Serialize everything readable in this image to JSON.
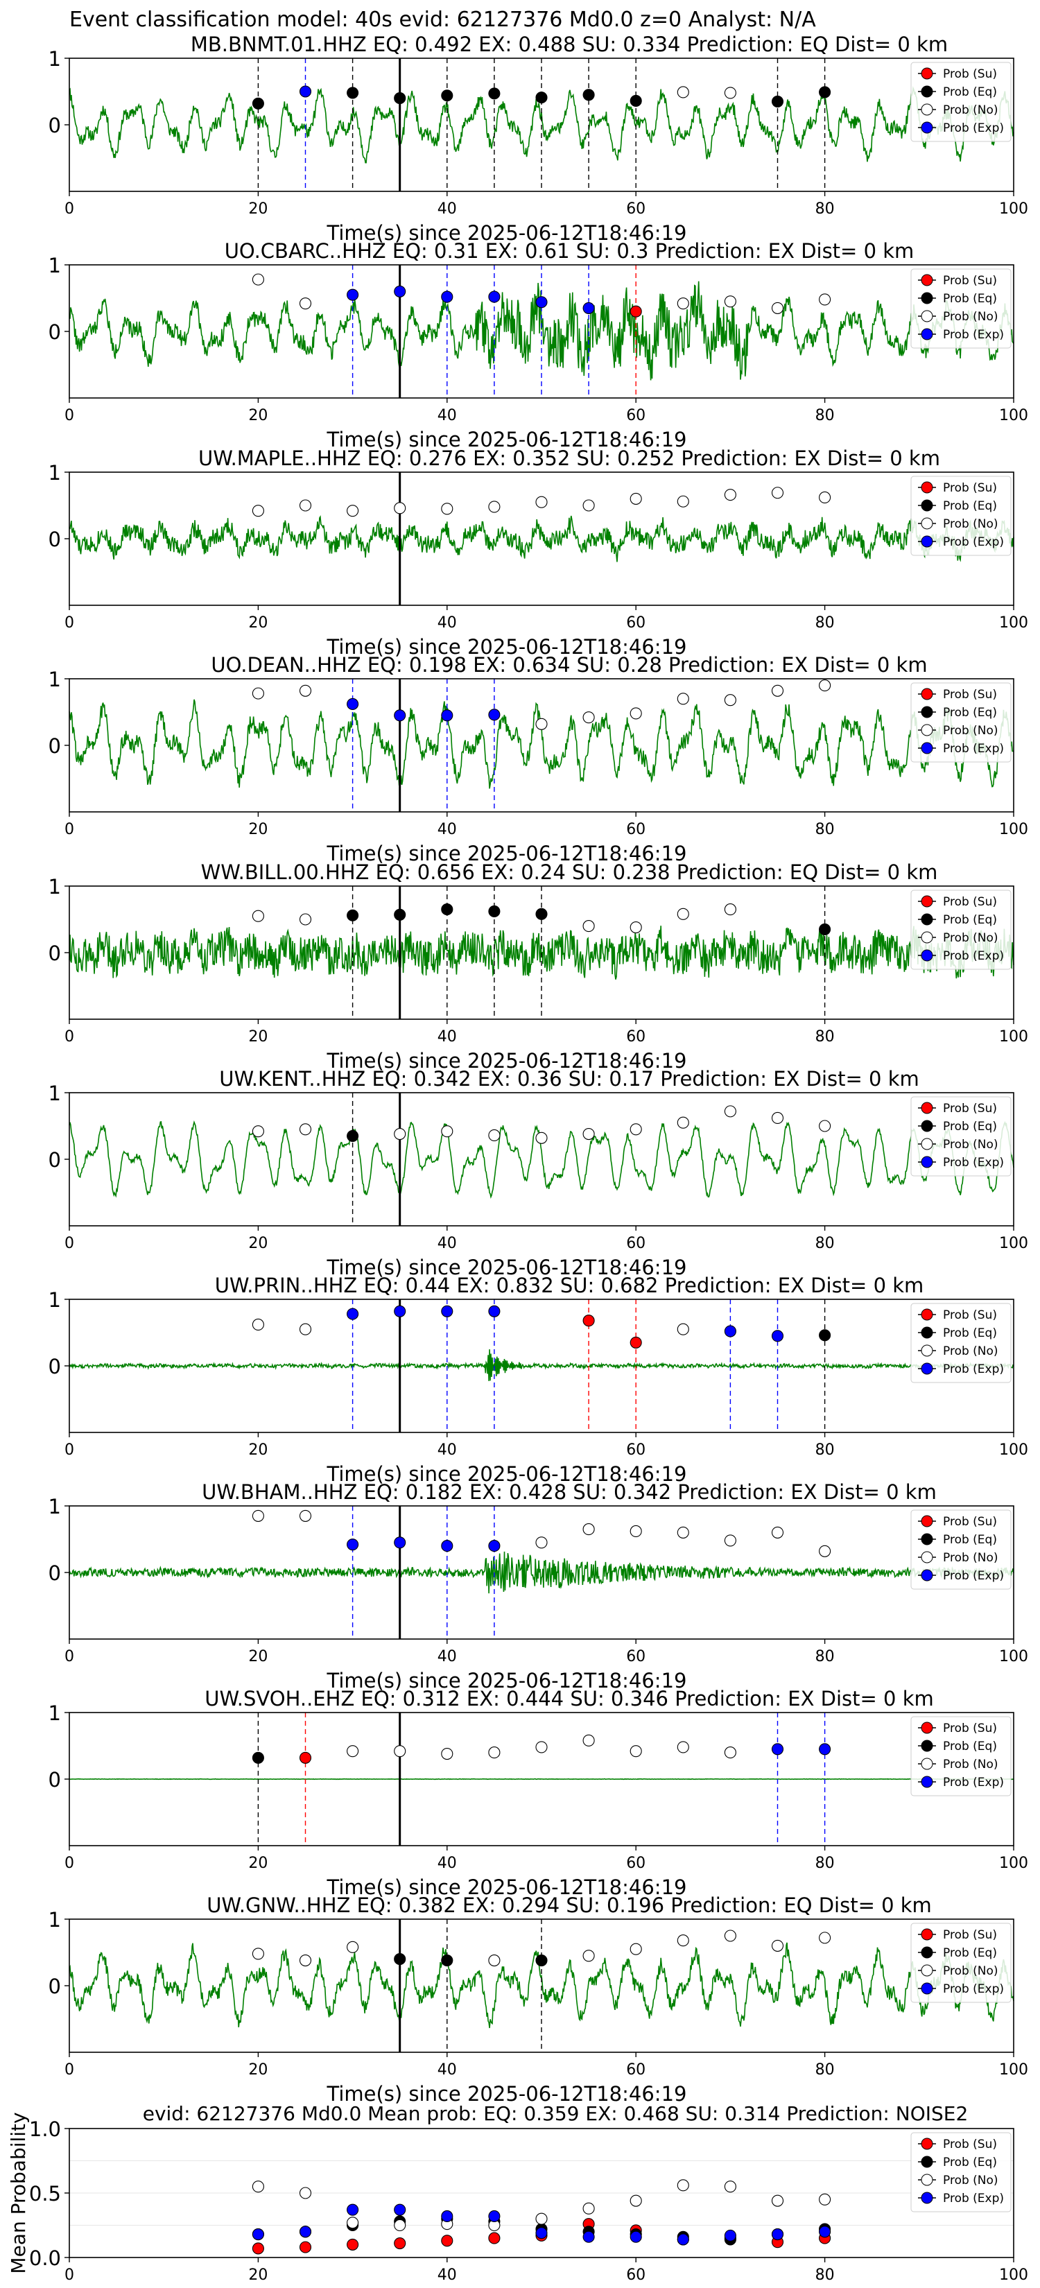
{
  "figure": {
    "suptitle": "Event classification model: 40s evid: 62127376 Md0.0 z=0 Analyst: N/A"
  },
  "colors": {
    "trace": "#008000",
    "su": "#ff0000",
    "eq": "#000000",
    "no": "#ffffff",
    "exp": "#0000ff",
    "grid": "#e6e6e6"
  },
  "legend_entries": [
    "Prob (Su)",
    "Prob (Eq)",
    "Prob (No)",
    "Prob (Exp)"
  ],
  "chart_data": [
    {
      "type": "line",
      "title": "MB.BNMT.01.HHZ   EQ: 0.492  EX: 0.488  SU: 0.334   Prediction: EQ    Dist= 0 km",
      "xlabel": "Time(s) since 2025-06-12T18:46:19",
      "xlim": [
        0,
        100
      ],
      "ylim": [
        -1,
        1
      ],
      "xticks": [
        0,
        20,
        40,
        60,
        80,
        100
      ],
      "yticks": [
        0,
        1
      ],
      "event_line": 35,
      "waveform": {
        "seed": 11,
        "style": "lowfreq",
        "amp": 0.55
      },
      "points": [
        {
          "x": 20,
          "y": 0.32,
          "c": "eq"
        },
        {
          "x": 25,
          "y": 0.5,
          "c": "exp"
        },
        {
          "x": 30,
          "y": 0.48,
          "c": "eq"
        },
        {
          "x": 35,
          "y": 0.4,
          "c": "eq"
        },
        {
          "x": 40,
          "y": 0.44,
          "c": "eq"
        },
        {
          "x": 45,
          "y": 0.47,
          "c": "eq"
        },
        {
          "x": 50,
          "y": 0.41,
          "c": "eq"
        },
        {
          "x": 55,
          "y": 0.45,
          "c": "eq"
        },
        {
          "x": 60,
          "y": 0.36,
          "c": "eq"
        },
        {
          "x": 65,
          "y": 0.49,
          "c": "no"
        },
        {
          "x": 70,
          "y": 0.48,
          "c": "no"
        },
        {
          "x": 75,
          "y": 0.35,
          "c": "eq"
        },
        {
          "x": 80,
          "y": 0.49,
          "c": "eq"
        }
      ]
    },
    {
      "type": "line",
      "title": "UO.CBARC..HHZ   EQ: 0.31  EX: 0.61  SU: 0.3   Prediction: EX    Dist= 0 km",
      "xlabel": "Time(s) since 2025-06-12T18:46:19",
      "xlim": [
        0,
        100
      ],
      "ylim": [
        -1,
        1
      ],
      "xticks": [
        0,
        20,
        40,
        60,
        80,
        100
      ],
      "yticks": [
        0,
        1
      ],
      "event_line": 35,
      "waveform": {
        "seed": 22,
        "style": "lowfreq_burst",
        "amp": 0.6
      },
      "points": [
        {
          "x": 20,
          "y": 0.78,
          "c": "no"
        },
        {
          "x": 25,
          "y": 0.42,
          "c": "no"
        },
        {
          "x": 30,
          "y": 0.55,
          "c": "exp"
        },
        {
          "x": 35,
          "y": 0.6,
          "c": "exp"
        },
        {
          "x": 40,
          "y": 0.52,
          "c": "exp"
        },
        {
          "x": 45,
          "y": 0.52,
          "c": "exp"
        },
        {
          "x": 50,
          "y": 0.44,
          "c": "exp"
        },
        {
          "x": 55,
          "y": 0.35,
          "c": "exp"
        },
        {
          "x": 60,
          "y": 0.3,
          "c": "su"
        },
        {
          "x": 65,
          "y": 0.42,
          "c": "no"
        },
        {
          "x": 70,
          "y": 0.45,
          "c": "no"
        },
        {
          "x": 75,
          "y": 0.35,
          "c": "no"
        },
        {
          "x": 80,
          "y": 0.48,
          "c": "no"
        }
      ]
    },
    {
      "type": "line",
      "title": "UW.MAPLE..HHZ   EQ: 0.276  EX: 0.352  SU: 0.252   Prediction: EX    Dist= 0 km",
      "xlabel": "Time(s) since 2025-06-12T18:46:19",
      "xlim": [
        0,
        100
      ],
      "ylim": [
        -1,
        1
      ],
      "xticks": [
        0,
        20,
        40,
        60,
        80,
        100
      ],
      "yticks": [
        0,
        1
      ],
      "event_line": 35,
      "waveform": {
        "seed": 33,
        "style": "mixed",
        "amp": 0.45
      },
      "points": [
        {
          "x": 20,
          "y": 0.42,
          "c": "no"
        },
        {
          "x": 25,
          "y": 0.5,
          "c": "no"
        },
        {
          "x": 30,
          "y": 0.42,
          "c": "no"
        },
        {
          "x": 35,
          "y": 0.46,
          "c": "no"
        },
        {
          "x": 40,
          "y": 0.45,
          "c": "no"
        },
        {
          "x": 45,
          "y": 0.48,
          "c": "no"
        },
        {
          "x": 50,
          "y": 0.55,
          "c": "no"
        },
        {
          "x": 55,
          "y": 0.5,
          "c": "no"
        },
        {
          "x": 60,
          "y": 0.6,
          "c": "no"
        },
        {
          "x": 65,
          "y": 0.56,
          "c": "no"
        },
        {
          "x": 70,
          "y": 0.66,
          "c": "no"
        },
        {
          "x": 75,
          "y": 0.69,
          "c": "no"
        },
        {
          "x": 80,
          "y": 0.62,
          "c": "no"
        }
      ]
    },
    {
      "type": "line",
      "title": "UO.DEAN..HHZ   EQ: 0.198  EX: 0.634  SU: 0.28   Prediction: EX    Dist= 0 km",
      "xlabel": "Time(s) since 2025-06-12T18:46:19",
      "xlim": [
        0,
        100
      ],
      "ylim": [
        -1,
        1
      ],
      "xticks": [
        0,
        20,
        40,
        60,
        80,
        100
      ],
      "yticks": [
        0,
        1
      ],
      "event_line": 35,
      "waveform": {
        "seed": 44,
        "style": "lowfreq",
        "amp": 0.7
      },
      "points": [
        {
          "x": 20,
          "y": 0.78,
          "c": "no"
        },
        {
          "x": 25,
          "y": 0.82,
          "c": "no"
        },
        {
          "x": 30,
          "y": 0.62,
          "c": "exp"
        },
        {
          "x": 35,
          "y": 0.45,
          "c": "exp"
        },
        {
          "x": 40,
          "y": 0.45,
          "c": "exp"
        },
        {
          "x": 45,
          "y": 0.46,
          "c": "exp"
        },
        {
          "x": 50,
          "y": 0.32,
          "c": "no"
        },
        {
          "x": 55,
          "y": 0.42,
          "c": "no"
        },
        {
          "x": 60,
          "y": 0.48,
          "c": "no"
        },
        {
          "x": 65,
          "y": 0.7,
          "c": "no"
        },
        {
          "x": 70,
          "y": 0.68,
          "c": "no"
        },
        {
          "x": 75,
          "y": 0.82,
          "c": "no"
        },
        {
          "x": 80,
          "y": 0.9,
          "c": "no"
        }
      ]
    },
    {
      "type": "line",
      "title": "WW.BILL.00.HHZ   EQ: 0.656  EX: 0.24  SU: 0.238   Prediction: EQ    Dist= 0 km",
      "xlabel": "Time(s) since 2025-06-12T18:46:19",
      "xlim": [
        0,
        100
      ],
      "ylim": [
        -1,
        1
      ],
      "xticks": [
        0,
        20,
        40,
        60,
        80,
        100
      ],
      "yticks": [
        0,
        1
      ],
      "event_line": 35,
      "waveform": {
        "seed": 55,
        "style": "noisy",
        "amp": 0.5
      },
      "points": [
        {
          "x": 20,
          "y": 0.55,
          "c": "no"
        },
        {
          "x": 25,
          "y": 0.5,
          "c": "no"
        },
        {
          "x": 30,
          "y": 0.56,
          "c": "eq"
        },
        {
          "x": 35,
          "y": 0.57,
          "c": "eq"
        },
        {
          "x": 40,
          "y": 0.65,
          "c": "eq"
        },
        {
          "x": 45,
          "y": 0.62,
          "c": "eq"
        },
        {
          "x": 50,
          "y": 0.58,
          "c": "eq"
        },
        {
          "x": 55,
          "y": 0.4,
          "c": "no"
        },
        {
          "x": 60,
          "y": 0.38,
          "c": "no"
        },
        {
          "x": 65,
          "y": 0.58,
          "c": "no"
        },
        {
          "x": 70,
          "y": 0.65,
          "c": "no"
        },
        {
          "x": 80,
          "y": 0.35,
          "c": "eq"
        }
      ]
    },
    {
      "type": "line",
      "title": "UW.KENT..HHZ   EQ: 0.342  EX: 0.36  SU: 0.17   Prediction: EX    Dist= 0 km",
      "xlabel": "Time(s) since 2025-06-12T18:46:19",
      "xlim": [
        0,
        100
      ],
      "ylim": [
        -1,
        1
      ],
      "xticks": [
        0,
        20,
        40,
        60,
        80,
        100
      ],
      "yticks": [
        0,
        1
      ],
      "event_line": 35,
      "waveform": {
        "seed": 66,
        "style": "lowfreq_big",
        "amp": 0.6
      },
      "points": [
        {
          "x": 20,
          "y": 0.42,
          "c": "no"
        },
        {
          "x": 25,
          "y": 0.45,
          "c": "no"
        },
        {
          "x": 30,
          "y": 0.35,
          "c": "eq"
        },
        {
          "x": 35,
          "y": 0.38,
          "c": "no"
        },
        {
          "x": 40,
          "y": 0.42,
          "c": "no"
        },
        {
          "x": 45,
          "y": 0.36,
          "c": "no"
        },
        {
          "x": 50,
          "y": 0.32,
          "c": "no"
        },
        {
          "x": 55,
          "y": 0.38,
          "c": "no"
        },
        {
          "x": 60,
          "y": 0.45,
          "c": "no"
        },
        {
          "x": 65,
          "y": 0.55,
          "c": "no"
        },
        {
          "x": 70,
          "y": 0.72,
          "c": "no"
        },
        {
          "x": 75,
          "y": 0.62,
          "c": "no"
        },
        {
          "x": 80,
          "y": 0.5,
          "c": "no"
        }
      ]
    },
    {
      "type": "line",
      "title": "UW.PRIN..HHZ   EQ: 0.44  EX: 0.832  SU: 0.682   Prediction: EX    Dist= 0 km",
      "xlabel": "Time(s) since 2025-06-12T18:46:19",
      "xlim": [
        0,
        100
      ],
      "ylim": [
        -1,
        1
      ],
      "xticks": [
        0,
        20,
        40,
        60,
        80,
        100
      ],
      "yticks": [
        0,
        1
      ],
      "event_line": 35,
      "waveform": {
        "seed": 77,
        "style": "quiet_burst",
        "amp": 0.15
      },
      "points": [
        {
          "x": 20,
          "y": 0.62,
          "c": "no"
        },
        {
          "x": 25,
          "y": 0.55,
          "c": "no"
        },
        {
          "x": 30,
          "y": 0.78,
          "c": "exp"
        },
        {
          "x": 35,
          "y": 0.82,
          "c": "exp"
        },
        {
          "x": 40,
          "y": 0.82,
          "c": "exp"
        },
        {
          "x": 45,
          "y": 0.82,
          "c": "exp"
        },
        {
          "x": 55,
          "y": 0.68,
          "c": "su"
        },
        {
          "x": 60,
          "y": 0.35,
          "c": "su"
        },
        {
          "x": 65,
          "y": 0.55,
          "c": "no"
        },
        {
          "x": 70,
          "y": 0.52,
          "c": "exp"
        },
        {
          "x": 75,
          "y": 0.45,
          "c": "exp"
        },
        {
          "x": 80,
          "y": 0.46,
          "c": "eq"
        }
      ]
    },
    {
      "type": "line",
      "title": "UW.BHAM..HHZ   EQ: 0.182  EX: 0.428  SU: 0.342   Prediction: EX    Dist= 0 km",
      "xlabel": "Time(s) since 2025-06-12T18:46:19",
      "xlim": [
        0,
        100
      ],
      "ylim": [
        -1,
        1
      ],
      "xticks": [
        0,
        20,
        40,
        60,
        80,
        100
      ],
      "yticks": [
        0,
        1
      ],
      "event_line": 35,
      "waveform": {
        "seed": 88,
        "style": "noisy_burst",
        "amp": 0.25
      },
      "points": [
        {
          "x": 20,
          "y": 0.85,
          "c": "no"
        },
        {
          "x": 25,
          "y": 0.85,
          "c": "no"
        },
        {
          "x": 30,
          "y": 0.42,
          "c": "exp"
        },
        {
          "x": 35,
          "y": 0.45,
          "c": "exp"
        },
        {
          "x": 40,
          "y": 0.4,
          "c": "exp"
        },
        {
          "x": 45,
          "y": 0.4,
          "c": "exp"
        },
        {
          "x": 50,
          "y": 0.45,
          "c": "no"
        },
        {
          "x": 55,
          "y": 0.65,
          "c": "no"
        },
        {
          "x": 60,
          "y": 0.62,
          "c": "no"
        },
        {
          "x": 65,
          "y": 0.6,
          "c": "no"
        },
        {
          "x": 70,
          "y": 0.48,
          "c": "no"
        },
        {
          "x": 75,
          "y": 0.6,
          "c": "no"
        },
        {
          "x": 80,
          "y": 0.32,
          "c": "no"
        }
      ]
    },
    {
      "type": "line",
      "title": "UW.SVOH..EHZ   EQ: 0.312  EX: 0.444  SU: 0.346   Prediction: EX    Dist= 0 km",
      "xlabel": "Time(s) since 2025-06-12T18:46:19",
      "xlim": [
        0,
        100
      ],
      "ylim": [
        -1,
        1
      ],
      "xticks": [
        0,
        20,
        40,
        60,
        80,
        100
      ],
      "yticks": [
        0,
        1
      ],
      "event_line": 35,
      "waveform": {
        "seed": 99,
        "style": "flat",
        "amp": 0.05
      },
      "points": [
        {
          "x": 20,
          "y": 0.32,
          "c": "eq"
        },
        {
          "x": 25,
          "y": 0.32,
          "c": "su"
        },
        {
          "x": 30,
          "y": 0.42,
          "c": "no"
        },
        {
          "x": 35,
          "y": 0.42,
          "c": "no"
        },
        {
          "x": 40,
          "y": 0.38,
          "c": "no"
        },
        {
          "x": 45,
          "y": 0.4,
          "c": "no"
        },
        {
          "x": 50,
          "y": 0.48,
          "c": "no"
        },
        {
          "x": 55,
          "y": 0.58,
          "c": "no"
        },
        {
          "x": 60,
          "y": 0.42,
          "c": "no"
        },
        {
          "x": 65,
          "y": 0.48,
          "c": "no"
        },
        {
          "x": 70,
          "y": 0.4,
          "c": "no"
        },
        {
          "x": 75,
          "y": 0.45,
          "c": "exp"
        },
        {
          "x": 80,
          "y": 0.45,
          "c": "exp"
        }
      ]
    },
    {
      "type": "line",
      "title": "UW.GNW..HHZ   EQ: 0.382  EX: 0.294  SU: 0.196   Prediction: EQ    Dist= 0 km",
      "xlabel": "Time(s) since 2025-06-12T18:46:19",
      "xlim": [
        0,
        100
      ],
      "ylim": [
        -1,
        1
      ],
      "xticks": [
        0,
        20,
        40,
        60,
        80,
        100
      ],
      "yticks": [
        0,
        1
      ],
      "event_line": 35,
      "waveform": {
        "seed": 111,
        "style": "lowfreq",
        "amp": 0.6
      },
      "points": [
        {
          "x": 20,
          "y": 0.48,
          "c": "no"
        },
        {
          "x": 25,
          "y": 0.38,
          "c": "no"
        },
        {
          "x": 30,
          "y": 0.58,
          "c": "no"
        },
        {
          "x": 35,
          "y": 0.4,
          "c": "eq"
        },
        {
          "x": 40,
          "y": 0.38,
          "c": "eq"
        },
        {
          "x": 45,
          "y": 0.38,
          "c": "no"
        },
        {
          "x": 50,
          "y": 0.38,
          "c": "eq"
        },
        {
          "x": 55,
          "y": 0.45,
          "c": "no"
        },
        {
          "x": 60,
          "y": 0.55,
          "c": "no"
        },
        {
          "x": 65,
          "y": 0.68,
          "c": "no"
        },
        {
          "x": 70,
          "y": 0.75,
          "c": "no"
        },
        {
          "x": 75,
          "y": 0.6,
          "c": "no"
        },
        {
          "x": 80,
          "y": 0.72,
          "c": "no"
        }
      ]
    },
    {
      "type": "scatter",
      "title": "evid: 62127376  Md0.0   Mean prob:   EQ: 0.359  EX: 0.468  SU: 0.314   Prediction: NOISE2",
      "ylabel": "Mean Probability",
      "xlim": [
        0,
        100
      ],
      "ylim": [
        0,
        1
      ],
      "xticks": [
        0,
        20,
        40,
        60,
        80,
        100
      ],
      "yticks": [
        0.0,
        0.5,
        1.0
      ],
      "ytick_labels": [
        "0.0",
        "0.5",
        "1.0"
      ],
      "grid": true,
      "series": [
        {
          "name": "Prob (Su)",
          "c": "su",
          "x": [
            20,
            25,
            30,
            35,
            40,
            45,
            50,
            55,
            60,
            65,
            70,
            75,
            80
          ],
          "y": [
            0.07,
            0.08,
            0.1,
            0.11,
            0.13,
            0.15,
            0.17,
            0.26,
            0.21,
            0.14,
            0.15,
            0.12,
            0.15
          ]
        },
        {
          "name": "Prob (Eq)",
          "c": "eq",
          "x": [
            20,
            25,
            30,
            35,
            40,
            45,
            50,
            55,
            60,
            65,
            70,
            75,
            80
          ],
          "y": [
            0.18,
            0.2,
            0.25,
            0.28,
            0.3,
            0.28,
            0.22,
            0.2,
            0.18,
            0.16,
            0.14,
            0.18,
            0.22
          ]
        },
        {
          "name": "Prob (No)",
          "c": "no",
          "x": [
            20,
            25,
            30,
            35,
            40,
            45,
            50,
            55,
            60,
            65,
            70,
            75,
            80
          ],
          "y": [
            0.55,
            0.5,
            0.27,
            0.25,
            0.26,
            0.25,
            0.3,
            0.38,
            0.44,
            0.56,
            0.55,
            0.44,
            0.45
          ]
        },
        {
          "name": "Prob (Exp)",
          "c": "exp",
          "x": [
            20,
            25,
            30,
            35,
            40,
            45,
            50,
            55,
            60,
            65,
            70,
            75,
            80
          ],
          "y": [
            0.18,
            0.2,
            0.37,
            0.37,
            0.32,
            0.32,
            0.19,
            0.16,
            0.16,
            0.14,
            0.17,
            0.18,
            0.2
          ]
        }
      ]
    }
  ]
}
